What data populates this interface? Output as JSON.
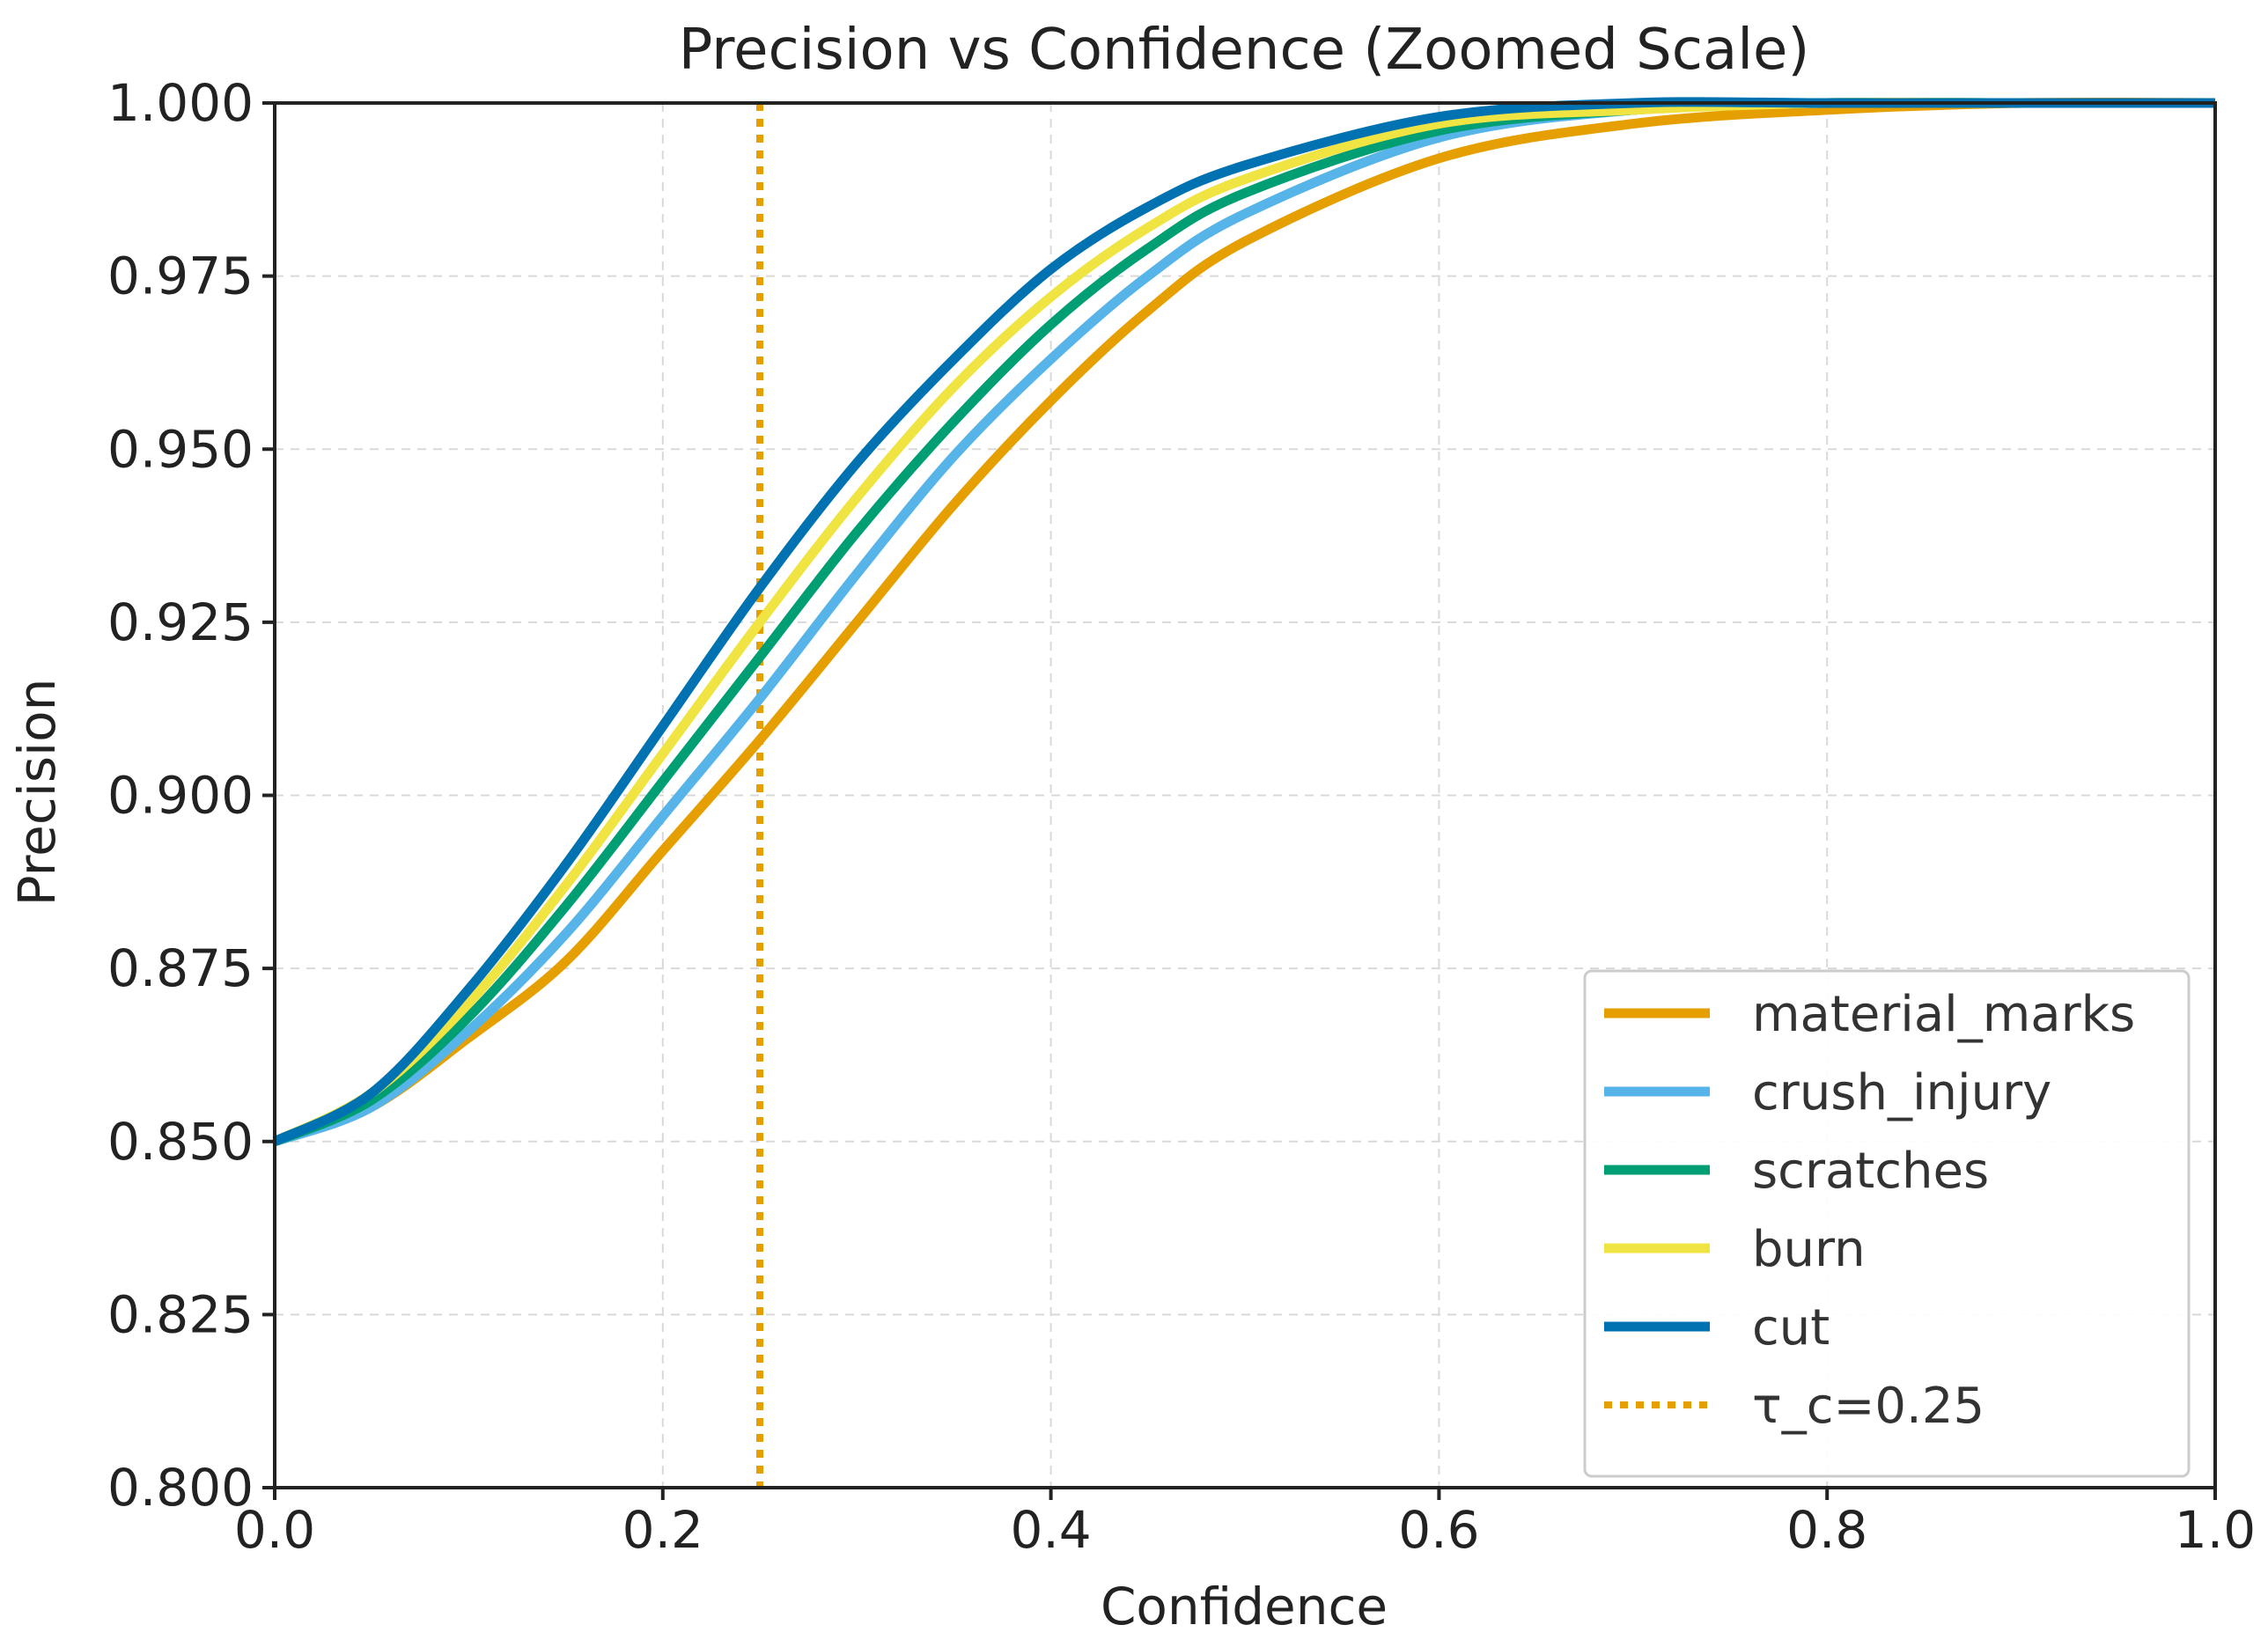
{
  "chart_data": {
    "type": "line",
    "title": "Precision vs Confidence (Zoomed Scale)",
    "xlabel": "Confidence",
    "ylabel": "Precision",
    "xlim": [
      0.0,
      1.0
    ],
    "ylim": [
      0.8,
      1.0
    ],
    "grid": true,
    "legend_position": "bottom-right",
    "x_ticks": [
      0.0,
      0.2,
      0.4,
      0.6,
      0.8,
      1.0
    ],
    "x_tick_labels": [
      "0.0",
      "0.2",
      "0.4",
      "0.6",
      "0.8",
      "1.0"
    ],
    "y_ticks": [
      0.8,
      0.825,
      0.85,
      0.875,
      0.9,
      0.925,
      0.95,
      0.975,
      1.0
    ],
    "y_tick_labels": [
      "0.800",
      "0.825",
      "0.850",
      "0.875",
      "0.900",
      "0.925",
      "0.950",
      "0.975",
      "1.000"
    ],
    "x": [
      0.0,
      0.05,
      0.1,
      0.15,
      0.2,
      0.25,
      0.3,
      0.35,
      0.4,
      0.45,
      0.5,
      0.6,
      0.7,
      0.8,
      0.9,
      1.0
    ],
    "series": [
      {
        "name": "material_marks",
        "color": "#E69F00",
        "values": [
          0.85,
          0.855,
          0.865,
          0.876,
          0.892,
          0.908,
          0.925,
          0.942,
          0.957,
          0.97,
          0.98,
          0.992,
          0.997,
          0.999,
          1.0,
          1.0
        ]
      },
      {
        "name": "crush_injury",
        "color": "#56B4E9",
        "values": [
          0.85,
          0.855,
          0.866,
          0.88,
          0.897,
          0.914,
          0.932,
          0.949,
          0.963,
          0.975,
          0.984,
          0.995,
          0.999,
          1.0,
          1.0,
          1.0
        ]
      },
      {
        "name": "scratches",
        "color": "#009E73",
        "values": [
          0.85,
          0.856,
          0.868,
          0.884,
          0.902,
          0.92,
          0.938,
          0.954,
          0.968,
          0.979,
          0.987,
          0.996,
          0.999,
          1.0,
          1.0,
          1.0
        ]
      },
      {
        "name": "burn",
        "color": "#F0E442",
        "values": [
          0.85,
          0.857,
          0.87,
          0.887,
          0.906,
          0.925,
          0.943,
          0.959,
          0.972,
          0.982,
          0.989,
          0.997,
          0.999,
          1.0,
          1.0,
          1.0
        ]
      },
      {
        "name": "cut",
        "color": "#0072B2",
        "values": [
          0.85,
          0.857,
          0.872,
          0.89,
          0.91,
          0.93,
          0.948,
          0.963,
          0.976,
          0.985,
          0.991,
          0.998,
          1.0,
          1.0,
          1.0,
          1.0
        ]
      }
    ],
    "threshold": {
      "name": "τ_c=0.25",
      "x": 0.25,
      "color": "#E69F00"
    }
  }
}
